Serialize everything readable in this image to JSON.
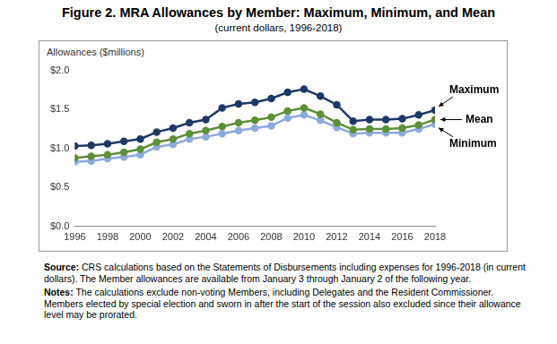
{
  "chart_data": {
    "type": "line",
    "title": "Figure 2. MRA Allowances by Member: Maximum, Minimum, and Mean",
    "subtitle": "(current dollars, 1996-2018)",
    "y_label": "Allowances ($millions)",
    "x": [
      1996,
      1997,
      1998,
      1999,
      2000,
      2001,
      2002,
      2003,
      2004,
      2005,
      2006,
      2007,
      2008,
      2009,
      2010,
      2011,
      2012,
      2013,
      2014,
      2015,
      2016,
      2017,
      2018
    ],
    "series": [
      {
        "name": "Maximum",
        "color": "#203864",
        "marker": "circle",
        "line_style": "solid",
        "values": [
          1.03,
          1.04,
          1.06,
          1.09,
          1.12,
          1.21,
          1.26,
          1.33,
          1.37,
          1.52,
          1.57,
          1.59,
          1.64,
          1.72,
          1.76,
          1.67,
          1.56,
          1.35,
          1.37,
          1.37,
          1.38,
          1.43,
          1.49
        ]
      },
      {
        "name": "Mean",
        "color": "#5e8f3a",
        "marker": "circle",
        "line_style": "solid",
        "values": [
          0.88,
          0.9,
          0.92,
          0.95,
          0.99,
          1.08,
          1.12,
          1.19,
          1.23,
          1.28,
          1.33,
          1.36,
          1.4,
          1.48,
          1.52,
          1.44,
          1.33,
          1.24,
          1.25,
          1.25,
          1.26,
          1.3,
          1.37
        ]
      },
      {
        "name": "Minimum",
        "color": "#8eaadb",
        "marker": "circle",
        "line_style": "solid",
        "values": [
          0.83,
          0.84,
          0.87,
          0.89,
          0.92,
          1.02,
          1.05,
          1.12,
          1.15,
          1.19,
          1.23,
          1.26,
          1.29,
          1.39,
          1.43,
          1.36,
          1.27,
          1.19,
          1.2,
          1.2,
          1.2,
          1.25,
          1.31
        ]
      }
    ],
    "xlim": [
      1996,
      2018
    ],
    "xticks": [
      1996,
      1998,
      2000,
      2002,
      2004,
      2006,
      2008,
      2010,
      2012,
      2014,
      2016,
      2018
    ],
    "ylim": [
      0,
      2
    ],
    "yticks": [
      {
        "value": 0,
        "label": "$0.0"
      },
      {
        "value": 0.5,
        "label": "$0.5"
      },
      {
        "value": 1,
        "label": "$1.0"
      },
      {
        "value": 1.5,
        "label": "$1.5"
      },
      {
        "value": 2,
        "label": "$2.0"
      }
    ],
    "grid": false,
    "source": {
      "label": "Source:",
      "text": "CRS calculations based on the Statements of Disbursements including expenses for 1996-2018 (in current dollars). The Member allowances are available from January 3 through January 2 of the following year."
    },
    "notes": {
      "label": "Notes:",
      "text": "The calculations exclude non-voting Members, including Delegates and the Resident Commissioner. Members elected by special election and sworn in after the start of the session also excluded since their allowance level may be prorated."
    }
  }
}
